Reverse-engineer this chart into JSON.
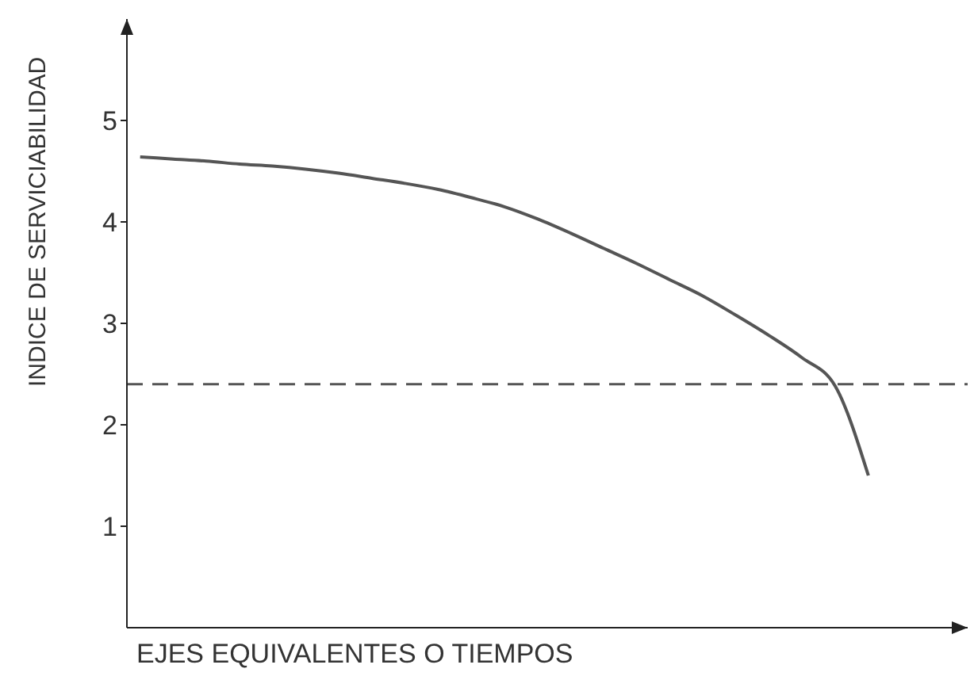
{
  "chart_data": {
    "type": "line",
    "xlabel": "EJES EQUIVALENTES O TIEMPOS",
    "ylabel": "INDICE DE SERVICIABILIDAD",
    "categories": [
      null,
      null,
      null,
      null,
      null,
      null,
      null,
      null,
      null,
      null,
      null,
      null,
      null,
      null,
      null,
      null,
      null,
      null,
      null,
      null,
      null,
      null,
      null
    ],
    "series": [
      {
        "color": "#555555",
        "values": [
          4.64,
          4.62,
          4.6,
          4.57,
          4.55,
          4.52,
          4.48,
          4.43,
          4.38,
          4.32,
          4.24,
          4.15,
          4.03,
          3.89,
          3.74,
          3.59,
          3.43,
          3.27,
          3.08,
          2.88,
          2.66,
          2.38,
          1.5
        ]
      }
    ],
    "ylim": [
      0,
      6
    ],
    "yticks": [
      1,
      2,
      3,
      4,
      5
    ],
    "grid": false,
    "legend": false,
    "marker": "none",
    "line_style": "solid",
    "ref_lines": [
      {
        "axis": "y",
        "value": 2.4,
        "color": "#555555",
        "line_style": "dashed"
      }
    ]
  }
}
